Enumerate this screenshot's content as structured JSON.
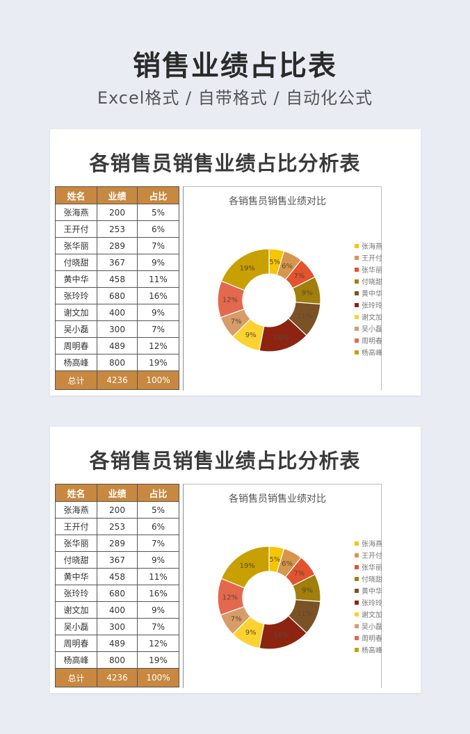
{
  "header": {
    "title": "销售业绩占比表",
    "subtitle": "Excel格式 / 自带格式 / 自动化公式"
  },
  "sheet": {
    "title": "各销售员销售业绩占比分析表",
    "columns": [
      "姓名",
      "业绩",
      "占比"
    ],
    "rows": [
      {
        "name": "张海燕",
        "value": "200",
        "pct": "5%"
      },
      {
        "name": "王开付",
        "value": "253",
        "pct": "6%"
      },
      {
        "name": "张华丽",
        "value": "289",
        "pct": "7%"
      },
      {
        "name": "付晓甜",
        "value": "367",
        "pct": "9%"
      },
      {
        "name": "黄中华",
        "value": "458",
        "pct": "11%"
      },
      {
        "name": "张玲玲",
        "value": "680",
        "pct": "16%"
      },
      {
        "name": "谢文加",
        "value": "400",
        "pct": "9%"
      },
      {
        "name": "吴小磊",
        "value": "300",
        "pct": "7%"
      },
      {
        "name": "周明春",
        "value": "489",
        "pct": "12%"
      },
      {
        "name": "杨高峰",
        "value": "800",
        "pct": "19%"
      }
    ],
    "total": {
      "name": "总计",
      "value": "4236",
      "pct": "100%"
    }
  },
  "chart_data": {
    "type": "pie",
    "donut": true,
    "title": "各销售员销售业绩对比",
    "legend": "right",
    "categories": [
      "张海燕",
      "王开付",
      "张华丽",
      "付晓甜",
      "黄中华",
      "张玲玲",
      "谢文加",
      "吴小磊",
      "周明春",
      "杨高峰"
    ],
    "values": [
      200,
      253,
      289,
      367,
      458,
      680,
      400,
      300,
      489,
      800
    ],
    "labels": [
      "5%",
      "6%",
      "7%",
      "9%",
      "11%",
      "16%",
      "9%",
      "7%",
      "12%",
      "19%"
    ],
    "colors": [
      "#f7c600",
      "#d6964d",
      "#e2532e",
      "#a07f0a",
      "#7b5226",
      "#8d2412",
      "#fbd230",
      "#d89c68",
      "#e4684e",
      "#c8a000"
    ]
  }
}
